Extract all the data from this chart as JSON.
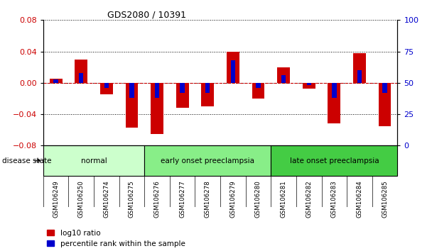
{
  "title": "GDS2080 / 10391",
  "samples": [
    "GSM106249",
    "GSM106250",
    "GSM106274",
    "GSM106275",
    "GSM106276",
    "GSM106277",
    "GSM106278",
    "GSM106279",
    "GSM106280",
    "GSM106281",
    "GSM106282",
    "GSM106283",
    "GSM106284",
    "GSM106285"
  ],
  "log10_ratio": [
    0.005,
    0.03,
    -0.015,
    -0.057,
    -0.065,
    -0.032,
    -0.03,
    0.04,
    -0.02,
    0.02,
    -0.007,
    -0.052,
    0.038,
    -0.055
  ],
  "percentile_pct": [
    53,
    58,
    46,
    38,
    38,
    42,
    42,
    68,
    46,
    56,
    48,
    38,
    60,
    42
  ],
  "ylim_left": [
    -0.08,
    0.08
  ],
  "ylim_right": [
    0,
    100
  ],
  "yticks_left": [
    -0.08,
    -0.04,
    0,
    0.04,
    0.08
  ],
  "yticks_right": [
    0,
    25,
    50,
    75,
    100
  ],
  "red_color": "#cc0000",
  "blue_color": "#0000cc",
  "groups": [
    {
      "label": "normal",
      "start": 0,
      "end": 3,
      "color": "#ccffcc"
    },
    {
      "label": "early onset preeclampsia",
      "start": 4,
      "end": 8,
      "color": "#88ee88"
    },
    {
      "label": "late onset preeclampsia",
      "start": 9,
      "end": 13,
      "color": "#44cc44"
    }
  ],
  "legend_items": [
    "log10 ratio",
    "percentile rank within the sample"
  ],
  "disease_state_label": "disease state"
}
